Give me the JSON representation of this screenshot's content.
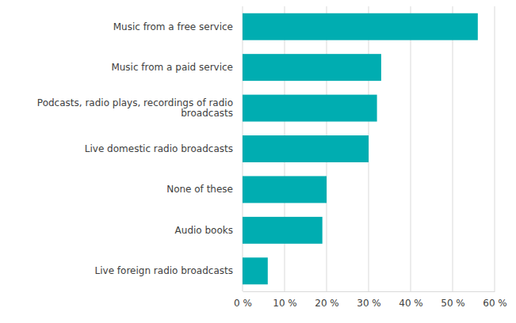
{
  "chart_data": {
    "type": "bar",
    "orientation": "horizontal",
    "categories": [
      "Music from a free service",
      "Music from a paid service",
      "Podcasts, radio plays, recordings of radio broadcasts",
      "Live domestic radio broadcasts",
      "None of these",
      "Audio books",
      "Live foreign radio broadcasts"
    ],
    "values": [
      56,
      33,
      32,
      30,
      20,
      19,
      6
    ],
    "color": "#00adb1",
    "xlim": [
      0,
      60
    ],
    "xticks": [
      {
        "value": 0,
        "label": "0 %"
      },
      {
        "value": 10,
        "label": "10 %"
      },
      {
        "value": 20,
        "label": "20 %"
      },
      {
        "value": 30,
        "label": "30 %"
      },
      {
        "value": 40,
        "label": "40 %"
      },
      {
        "value": 50,
        "label": "50 %"
      },
      {
        "value": 60,
        "label": "60 %"
      }
    ],
    "grid": true
  }
}
